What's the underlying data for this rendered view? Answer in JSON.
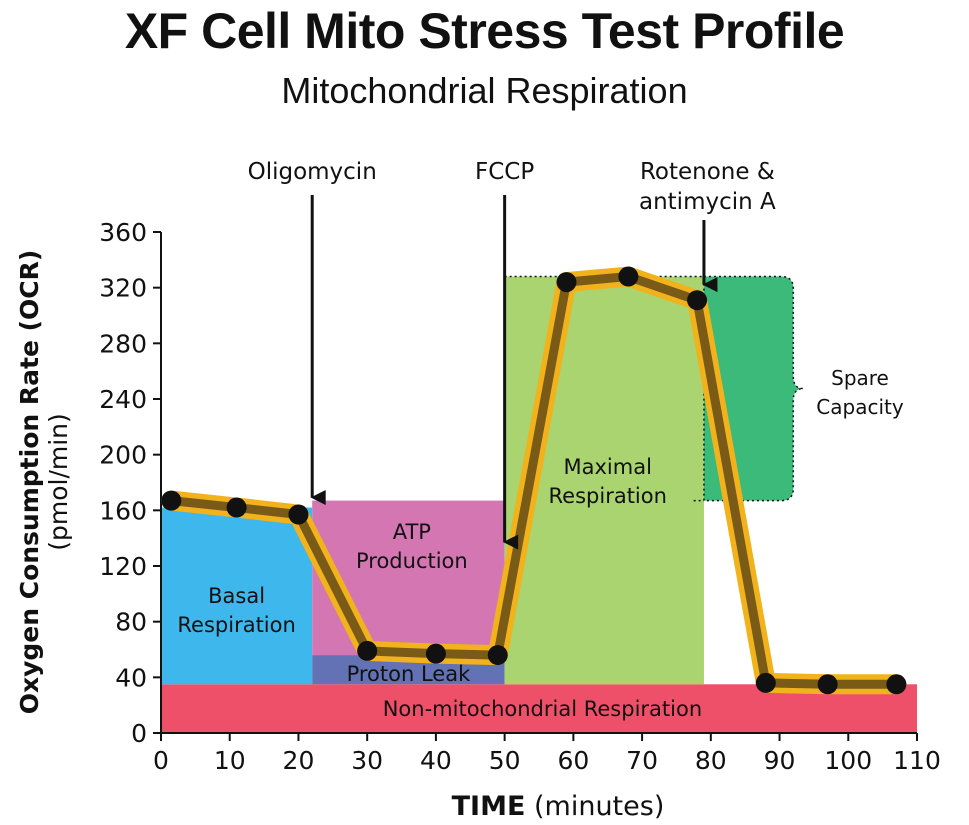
{
  "chart_data": {
    "type": "line",
    "title": "XF Cell Mito Stress Test Profile",
    "subtitle": "Mitochondrial Respiration",
    "ylabel_bold": "Oxygen Consumption Rate (OCR)",
    "ylabel_unit": "(pmol/min)",
    "xlabel_bold": "TIME",
    "xlabel_unit": "(minutes)",
    "xlim": [
      0,
      110
    ],
    "ylim": [
      0,
      360
    ],
    "xticks": [
      "0",
      "10",
      "20",
      "30",
      "40",
      "50",
      "60",
      "70",
      "80",
      "90",
      "100",
      "110"
    ],
    "yticks": [
      "0",
      "40",
      "80",
      "120",
      "160",
      "200",
      "240",
      "280",
      "320",
      "360"
    ],
    "series": [
      {
        "x": [
          1.5,
          11,
          20,
          30,
          40,
          49,
          59,
          68,
          78,
          88,
          97,
          107
        ],
        "y": [
          167,
          162,
          157,
          59,
          57,
          56,
          324,
          328,
          311,
          36,
          35,
          35
        ]
      }
    ],
    "regions": [
      {
        "label": "Non-mitochondrial Respiration",
        "x": [
          0,
          110
        ],
        "y": [
          0,
          35
        ],
        "color": "#ef5069"
      },
      {
        "label": "Basal Respiration",
        "x": [
          0,
          22
        ],
        "y": [
          35,
          162
        ],
        "color": "#3db7ec"
      },
      {
        "label": "Proton Leak",
        "x": [
          22,
          50
        ],
        "y": [
          35,
          56
        ],
        "color": "#6272b4"
      },
      {
        "label": "ATP Production",
        "x": [
          22,
          50
        ],
        "y": [
          56,
          167
        ],
        "color": "#d376b2"
      },
      {
        "label": "Maximal Respiration",
        "x": [
          50,
          79
        ],
        "y": [
          35,
          328
        ],
        "color": "#a9d46f"
      },
      {
        "label": "Spare Capacity",
        "x": [
          79,
          92
        ],
        "y": [
          167,
          328
        ],
        "color": "#3cba7a"
      }
    ],
    "injections": [
      {
        "label": "Oligomycin",
        "x": 22
      },
      {
        "label": "FCCP",
        "x": 50
      },
      {
        "label": "Rotenone & antimycin A",
        "x": 79
      }
    ],
    "colors": {
      "line_inner": "#7a5a17",
      "line_outer": "#f2b21c",
      "marker": "#111111",
      "axis": "#111111"
    }
  },
  "labels": {
    "basal": [
      "Basal",
      "Respiration"
    ],
    "atp": [
      "ATP",
      "Production"
    ],
    "leak": "Proton Leak",
    "maximal": [
      "Maximal",
      "Respiration"
    ],
    "spare": [
      "Spare",
      "Capacity"
    ],
    "nonmito": "Non-mitochondrial Respiration",
    "oligo": "Oligomycin",
    "fccp": "FCCP",
    "rot": [
      "Rotenone &",
      "antimycin A"
    ]
  }
}
